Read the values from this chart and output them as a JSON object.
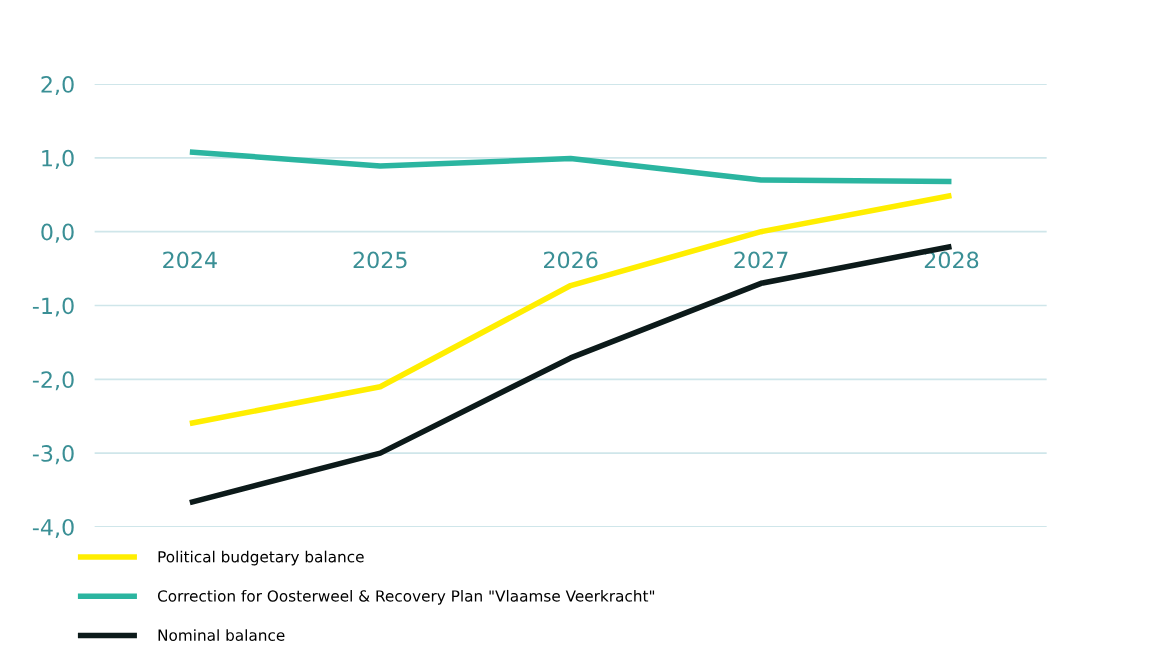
{
  "chart_data": {
    "type": "line",
    "categories": [
      "2024",
      "2025",
      "2026",
      "2027",
      "2028"
    ],
    "series": [
      {
        "name": "Political budgetary balance",
        "color": "#ffee00",
        "values": [
          -2.6,
          -2.1,
          -0.73,
          0.0,
          0.49
        ]
      },
      {
        "name": "Correction for Oosterweel & Recovery Plan \"Vlaamse Veerkracht\"",
        "color": "#2bb5a0",
        "values": [
          1.08,
          0.89,
          0.99,
          0.7,
          0.68
        ]
      },
      {
        "name": "Nominal balance",
        "color": "#0c1a1a",
        "values": [
          -3.67,
          -3.0,
          -1.71,
          -0.7,
          -0.2
        ]
      }
    ],
    "ylim": [
      -4,
      2
    ],
    "yticks": [
      {
        "value": 2,
        "label": "2,0"
      },
      {
        "value": 1,
        "label": "1,0"
      },
      {
        "value": 0,
        "label": "0,0"
      },
      {
        "value": -1,
        "label": "-1,0"
      },
      {
        "value": -2,
        "label": "-2,0"
      },
      {
        "value": -3,
        "label": "-3,0"
      },
      {
        "value": -4,
        "label": "-4,0"
      }
    ],
    "grid": "y",
    "legend": "bottom left",
    "marker": "none",
    "line_style": "solid"
  }
}
